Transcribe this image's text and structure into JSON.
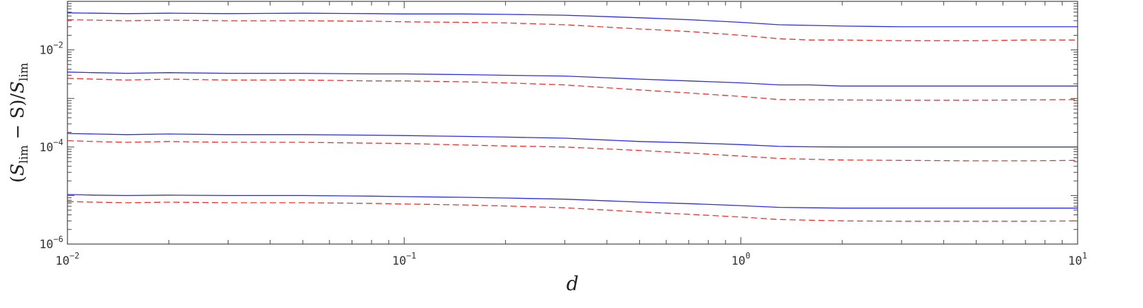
{
  "chart_data": {
    "type": "line",
    "xscale": "log",
    "yscale": "log",
    "xlim": [
      0.01,
      10
    ],
    "ylim": [
      1e-06,
      0.1
    ],
    "xlabel": "d",
    "ylabel": {
      "open": "(",
      "s1": "S",
      "sub1": "lim",
      "minus": " − S)/",
      "s2": "S",
      "sub2": "lim"
    },
    "x_ticks": [
      {
        "value": 0.01,
        "base": "10",
        "exp": "−2"
      },
      {
        "value": 0.1,
        "base": "10",
        "exp": "−1"
      },
      {
        "value": 1,
        "base": "10",
        "exp": "0"
      },
      {
        "value": 10,
        "base": "10",
        "exp": "1"
      }
    ],
    "y_ticks": [
      {
        "value": 1e-06,
        "base": "10",
        "exp": "−6"
      },
      {
        "value": 0.0001,
        "base": "10",
        "exp": "−4"
      },
      {
        "value": 0.01,
        "base": "10",
        "exp": "−2"
      }
    ],
    "colors": {
      "solid": "#2a2ae8",
      "dashed": "#e83030",
      "axis": "#444444"
    },
    "series": [
      {
        "style": "solid",
        "x": [
          0.01,
          0.012,
          0.015,
          0.02,
          0.03,
          0.05,
          0.08,
          0.1,
          0.15,
          0.2,
          0.3,
          0.5,
          0.7,
          1.0,
          1.3,
          1.6,
          2.0,
          3.0,
          5.0,
          7.0,
          10.0
        ],
        "y": [
          0.058,
          0.057,
          0.056,
          0.057,
          0.056,
          0.057,
          0.056,
          0.055,
          0.055,
          0.054,
          0.052,
          0.046,
          0.042,
          0.037,
          0.033,
          0.032,
          0.031,
          0.03,
          0.03,
          0.03,
          0.03
        ]
      },
      {
        "style": "dashed",
        "x": [
          0.01,
          0.012,
          0.015,
          0.02,
          0.03,
          0.05,
          0.08,
          0.1,
          0.15,
          0.2,
          0.3,
          0.5,
          0.7,
          1.0,
          1.3,
          1.6,
          2.0,
          3.0,
          5.0,
          7.0,
          10.0
        ],
        "y": [
          0.042,
          0.041,
          0.04,
          0.041,
          0.04,
          0.04,
          0.039,
          0.038,
          0.037,
          0.036,
          0.033,
          0.027,
          0.024,
          0.02,
          0.017,
          0.016,
          0.016,
          0.0155,
          0.0155,
          0.016,
          0.016
        ]
      },
      {
        "style": "solid",
        "x": [
          0.01,
          0.012,
          0.015,
          0.02,
          0.03,
          0.05,
          0.08,
          0.1,
          0.15,
          0.2,
          0.3,
          0.5,
          0.7,
          1.0,
          1.3,
          1.6,
          2.0,
          3.0,
          5.0,
          7.0,
          10.0
        ],
        "y": [
          0.0035,
          0.0034,
          0.0033,
          0.0034,
          0.0033,
          0.0033,
          0.0032,
          0.0032,
          0.0031,
          0.003,
          0.0029,
          0.0025,
          0.0023,
          0.0021,
          0.0019,
          0.0019,
          0.0018,
          0.0018,
          0.0018,
          0.0018,
          0.0018
        ]
      },
      {
        "style": "dashed",
        "x": [
          0.01,
          0.012,
          0.015,
          0.02,
          0.03,
          0.05,
          0.08,
          0.1,
          0.15,
          0.2,
          0.3,
          0.5,
          0.7,
          1.0,
          1.3,
          1.6,
          2.0,
          3.0,
          5.0,
          7.0,
          10.0
        ],
        "y": [
          0.0026,
          0.0025,
          0.0024,
          0.0025,
          0.0024,
          0.0024,
          0.0023,
          0.0023,
          0.0022,
          0.0021,
          0.0019,
          0.0015,
          0.0013,
          0.0011,
          0.00095,
          0.00094,
          0.00093,
          0.00092,
          0.00092,
          0.00093,
          0.00095
        ]
      },
      {
        "style": "solid",
        "x": [
          0.01,
          0.012,
          0.015,
          0.02,
          0.03,
          0.05,
          0.08,
          0.1,
          0.15,
          0.2,
          0.3,
          0.5,
          0.7,
          1.0,
          1.3,
          1.6,
          2.0,
          3.0,
          5.0,
          7.0,
          10.0
        ],
        "y": [
          0.00019,
          0.000185,
          0.00018,
          0.000185,
          0.00018,
          0.00018,
          0.000175,
          0.000172,
          0.000165,
          0.00016,
          0.000152,
          0.00013,
          0.000122,
          0.000112,
          0.000103,
          0.000101,
          0.0001,
          0.0001,
          0.0001,
          0.0001,
          0.0001
        ]
      },
      {
        "style": "dashed",
        "x": [
          0.01,
          0.012,
          0.015,
          0.02,
          0.03,
          0.05,
          0.08,
          0.1,
          0.15,
          0.2,
          0.3,
          0.5,
          0.7,
          1.0,
          1.3,
          1.6,
          2.0,
          3.0,
          5.0,
          7.0,
          10.0
        ],
        "y": [
          0.000135,
          0.00013,
          0.000125,
          0.00013,
          0.000125,
          0.000125,
          0.00012,
          0.000118,
          0.00011,
          0.000105,
          0.0001,
          8.5e-05,
          7.5e-05,
          6.5e-05,
          5.8e-05,
          5.6e-05,
          5.4e-05,
          5.3e-05,
          5.2e-05,
          5.2e-05,
          5.3e-05
        ]
      },
      {
        "style": "solid",
        "x": [
          0.01,
          0.012,
          0.015,
          0.02,
          0.03,
          0.05,
          0.08,
          0.1,
          0.15,
          0.2,
          0.3,
          0.5,
          0.7,
          1.0,
          1.3,
          1.6,
          2.0,
          3.0,
          5.0,
          7.0,
          10.0
        ],
        "y": [
          1.05e-05,
          1.02e-05,
          1e-05,
          1.02e-05,
          1e-05,
          1e-05,
          9.7e-06,
          9.5e-06,
          9.2e-06,
          8.9e-06,
          8.4e-06,
          7.3e-06,
          6.8e-06,
          6.2e-06,
          5.7e-06,
          5.6e-06,
          5.5e-06,
          5.5e-06,
          5.5e-06,
          5.5e-06,
          5.5e-06
        ]
      },
      {
        "style": "dashed",
        "x": [
          0.01,
          0.012,
          0.015,
          0.02,
          0.03,
          0.05,
          0.08,
          0.1,
          0.15,
          0.2,
          0.3,
          0.5,
          0.7,
          1.0,
          1.3,
          1.6,
          2.0,
          3.0,
          5.0,
          7.0,
          10.0
        ],
        "y": [
          7.5e-06,
          7.3e-06,
          7.1e-06,
          7.3e-06,
          7.1e-06,
          7.1e-06,
          6.9e-06,
          6.7e-06,
          6.4e-06,
          6.1e-06,
          5.6e-06,
          4.6e-06,
          4.1e-06,
          3.6e-06,
          3.2e-06,
          3.1e-06,
          3e-06,
          2.95e-06,
          2.95e-06,
          2.95e-06,
          3e-06
        ]
      }
    ]
  }
}
